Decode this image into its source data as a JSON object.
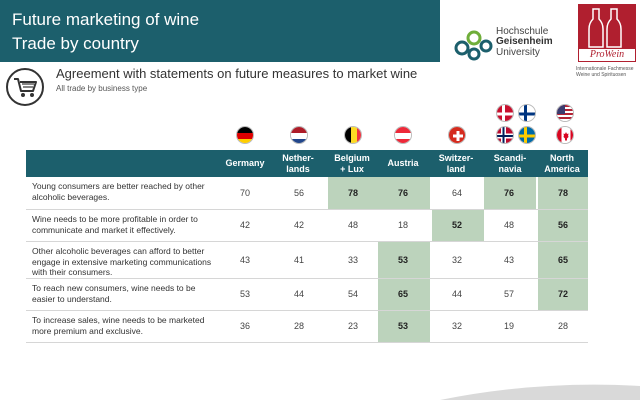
{
  "header": {
    "title_line1": "Future marketing of wine",
    "title_line2": "Trade by country",
    "colors": {
      "band": "#1c5f6c",
      "highlight": "#bcd3bc",
      "brand_red": "#b01f2f"
    }
  },
  "logos": {
    "hgu": {
      "line1": "Hochschule",
      "line2": "Geisenheim",
      "line3": "University"
    },
    "prowein": {
      "name": "ProWein",
      "sub1": "Internationale Fachmesse",
      "sub2": "Weine und Spirituosen"
    }
  },
  "subheader": {
    "icon": "shopping-cart-icon",
    "title": "Agreement with statements on future measures to market wine",
    "note": "All trade by business type"
  },
  "table": {
    "columns": [
      {
        "line1": "Germany",
        "line2": "",
        "flags": [
          "germany"
        ]
      },
      {
        "line1": "Nether-",
        "line2": "lands",
        "flags": [
          "netherlands"
        ]
      },
      {
        "line1": "Belgium",
        "line2": "+ Lux",
        "flags": [
          "belgium"
        ]
      },
      {
        "line1": "Austria",
        "line2": "",
        "flags": [
          "austria"
        ]
      },
      {
        "line1": "Switzer-",
        "line2": "land",
        "flags": [
          "switzerland"
        ]
      },
      {
        "line1": "Scandi-",
        "line2": "navia",
        "flags": [
          "denmark",
          "finland",
          "norway",
          "sweden"
        ]
      },
      {
        "line1": "North",
        "line2": "America",
        "flags": [
          "usa",
          "canada"
        ]
      }
    ],
    "rows": [
      {
        "text": "Young consumers are better reached by other alcoholic beverages.",
        "values": [
          "70",
          "56",
          "78",
          "76",
          "64",
          "76",
          "78"
        ],
        "highlight": [
          false,
          false,
          true,
          true,
          false,
          true,
          true
        ]
      },
      {
        "text": "Wine needs to be more profitable in order to communicate and market it effectively.",
        "values": [
          "42",
          "42",
          "48",
          "18",
          "52",
          "48",
          "56"
        ],
        "highlight": [
          false,
          false,
          false,
          false,
          true,
          false,
          true
        ]
      },
      {
        "text": "Other alcoholic beverages can afford to better engage in extensive marketing communications with their consumers.",
        "values": [
          "43",
          "41",
          "33",
          "53",
          "32",
          "43",
          "65"
        ],
        "highlight": [
          false,
          false,
          false,
          true,
          false,
          false,
          true
        ]
      },
      {
        "text": "To reach new consumers, wine needs to be easier to understand.",
        "values": [
          "53",
          "44",
          "54",
          "65",
          "44",
          "57",
          "72"
        ],
        "highlight": [
          false,
          false,
          false,
          true,
          false,
          false,
          true
        ]
      },
      {
        "text": "To increase sales, wine needs to be marketed more premium and exclusive.",
        "values": [
          "36",
          "28",
          "23",
          "53",
          "32",
          "19",
          "28"
        ],
        "highlight": [
          false,
          false,
          false,
          true,
          false,
          false,
          false
        ]
      }
    ]
  }
}
